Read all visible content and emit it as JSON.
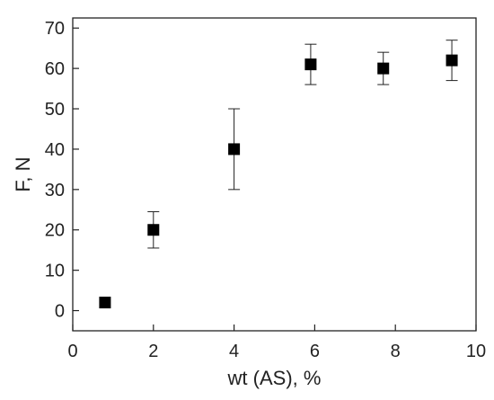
{
  "chart_data": {
    "type": "scatter",
    "title": "",
    "xlabel": "wt (AS), %",
    "ylabel": "F, N",
    "xlim": [
      0,
      10
    ],
    "ylim": [
      -5,
      72.5
    ],
    "x_ticks": [
      0,
      2,
      4,
      6,
      8,
      10
    ],
    "y_ticks": [
      0,
      10,
      20,
      30,
      40,
      50,
      60,
      70
    ],
    "x_tick_labels": [
      "0",
      "2",
      "4",
      "6",
      "8",
      "10"
    ],
    "y_tick_labels": [
      "0",
      "10",
      "20",
      "30",
      "40",
      "50",
      "60",
      "70"
    ],
    "grid": false,
    "legend": "none",
    "marker": "filled-square",
    "marker_color": "#000000",
    "series": [
      {
        "x": [
          0.8,
          2.0,
          4.0,
          5.9,
          7.7,
          9.4
        ],
        "y": [
          2,
          20,
          40,
          61,
          60,
          62
        ],
        "error": [
          0,
          4.5,
          10,
          5,
          4,
          5
        ]
      }
    ]
  }
}
